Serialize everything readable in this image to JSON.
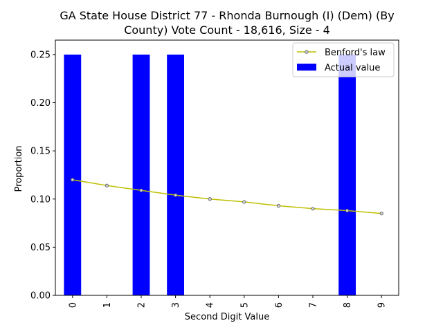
{
  "chart_data": {
    "type": "bar",
    "title_line1": "GA State House District 77 - Rhonda Burnough (I) (Dem) (By",
    "title_line2": "County) Vote Count - 18,616, Size - 4",
    "xlabel": "Second Digit Value",
    "ylabel": "Proportion",
    "categories": [
      "0",
      "1",
      "2",
      "3",
      "4",
      "5",
      "6",
      "7",
      "8",
      "9"
    ],
    "ylim": [
      0,
      0.265
    ],
    "yticks": [
      "0.00",
      "0.05",
      "0.10",
      "0.15",
      "0.20",
      "0.25"
    ],
    "series": [
      {
        "name": "Actual value",
        "kind": "bar",
        "color": "#0000ff",
        "values": [
          0.25,
          0,
          0.25,
          0.25,
          0,
          0,
          0,
          0,
          0.25,
          0
        ]
      },
      {
        "name": "Benford's law",
        "kind": "line",
        "color": "#bfbf00",
        "values": [
          0.12,
          0.114,
          0.109,
          0.104,
          0.1,
          0.097,
          0.093,
          0.09,
          0.088,
          0.085
        ]
      }
    ],
    "legend": {
      "position": "top-right",
      "line_label": "Benford's law",
      "bar_label": "Actual value"
    },
    "grid": false
  }
}
